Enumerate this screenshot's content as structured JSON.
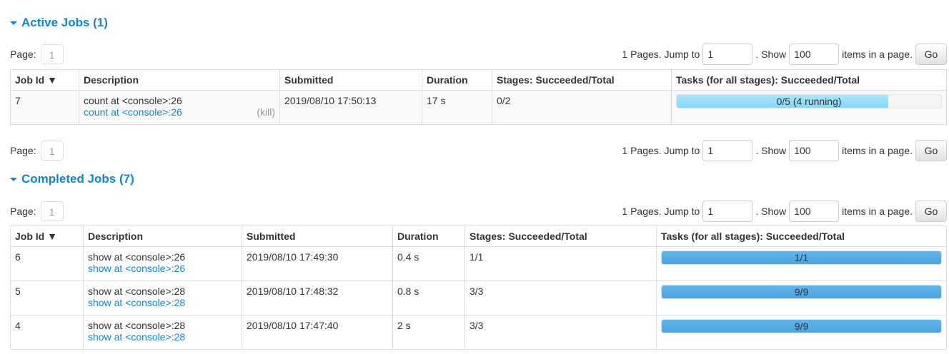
{
  "active": {
    "title": "Active Jobs (1)",
    "pager": {
      "page_label": "Page:",
      "page": "1",
      "pages_text": "1 Pages. Jump to",
      "jump_value": "1",
      "show_text": ". Show",
      "show_value": "100",
      "items_text": "items in a page.",
      "go": "Go"
    },
    "columns": [
      "Job Id ▼",
      "Description",
      "Submitted",
      "Duration",
      "Stages: Succeeded/Total",
      "Tasks (for all stages): Succeeded/Total"
    ],
    "rows": [
      {
        "id": "7",
        "desc": "count at <console>:26",
        "link": "count at <console>:26",
        "kill": "(kill)",
        "submitted": "2019/08/10 17:50:13",
        "duration": "17 s",
        "stages": "0/2",
        "tasks": "0/5 (4 running)",
        "running_fraction": 0.8
      }
    ]
  },
  "completed": {
    "title": "Completed Jobs (7)",
    "pager": {
      "page_label": "Page:",
      "page": "1",
      "pages_text": "1 Pages. Jump to",
      "jump_value": "1",
      "show_text": ". Show",
      "show_value": "100",
      "items_text": "items in a page.",
      "go": "Go"
    },
    "columns": [
      "Job Id ▼",
      "Description",
      "Submitted",
      "Duration",
      "Stages: Succeeded/Total",
      "Tasks (for all stages): Succeeded/Total"
    ],
    "rows": [
      {
        "id": "6",
        "desc": "show at <console>:26",
        "link": "show at <console>:26",
        "submitted": "2019/08/10 17:49:30",
        "duration": "0.4 s",
        "stages": "1/1",
        "tasks": "1/1",
        "done_fraction": 1
      },
      {
        "id": "5",
        "desc": "show at <console>:28",
        "link": "show at <console>:28",
        "submitted": "2019/08/10 17:48:32",
        "duration": "0.8 s",
        "stages": "3/3",
        "tasks": "9/9",
        "done_fraction": 1
      },
      {
        "id": "4",
        "desc": "show at <console>:28",
        "link": "show at <console>:28",
        "submitted": "2019/08/10 17:47:40",
        "duration": "2 s",
        "stages": "3/3",
        "tasks": "9/9",
        "done_fraction": 1
      }
    ]
  },
  "colors": {
    "accent": "#0f87d0",
    "running": "#8ad6f4",
    "completed": "#4aa3e2"
  }
}
